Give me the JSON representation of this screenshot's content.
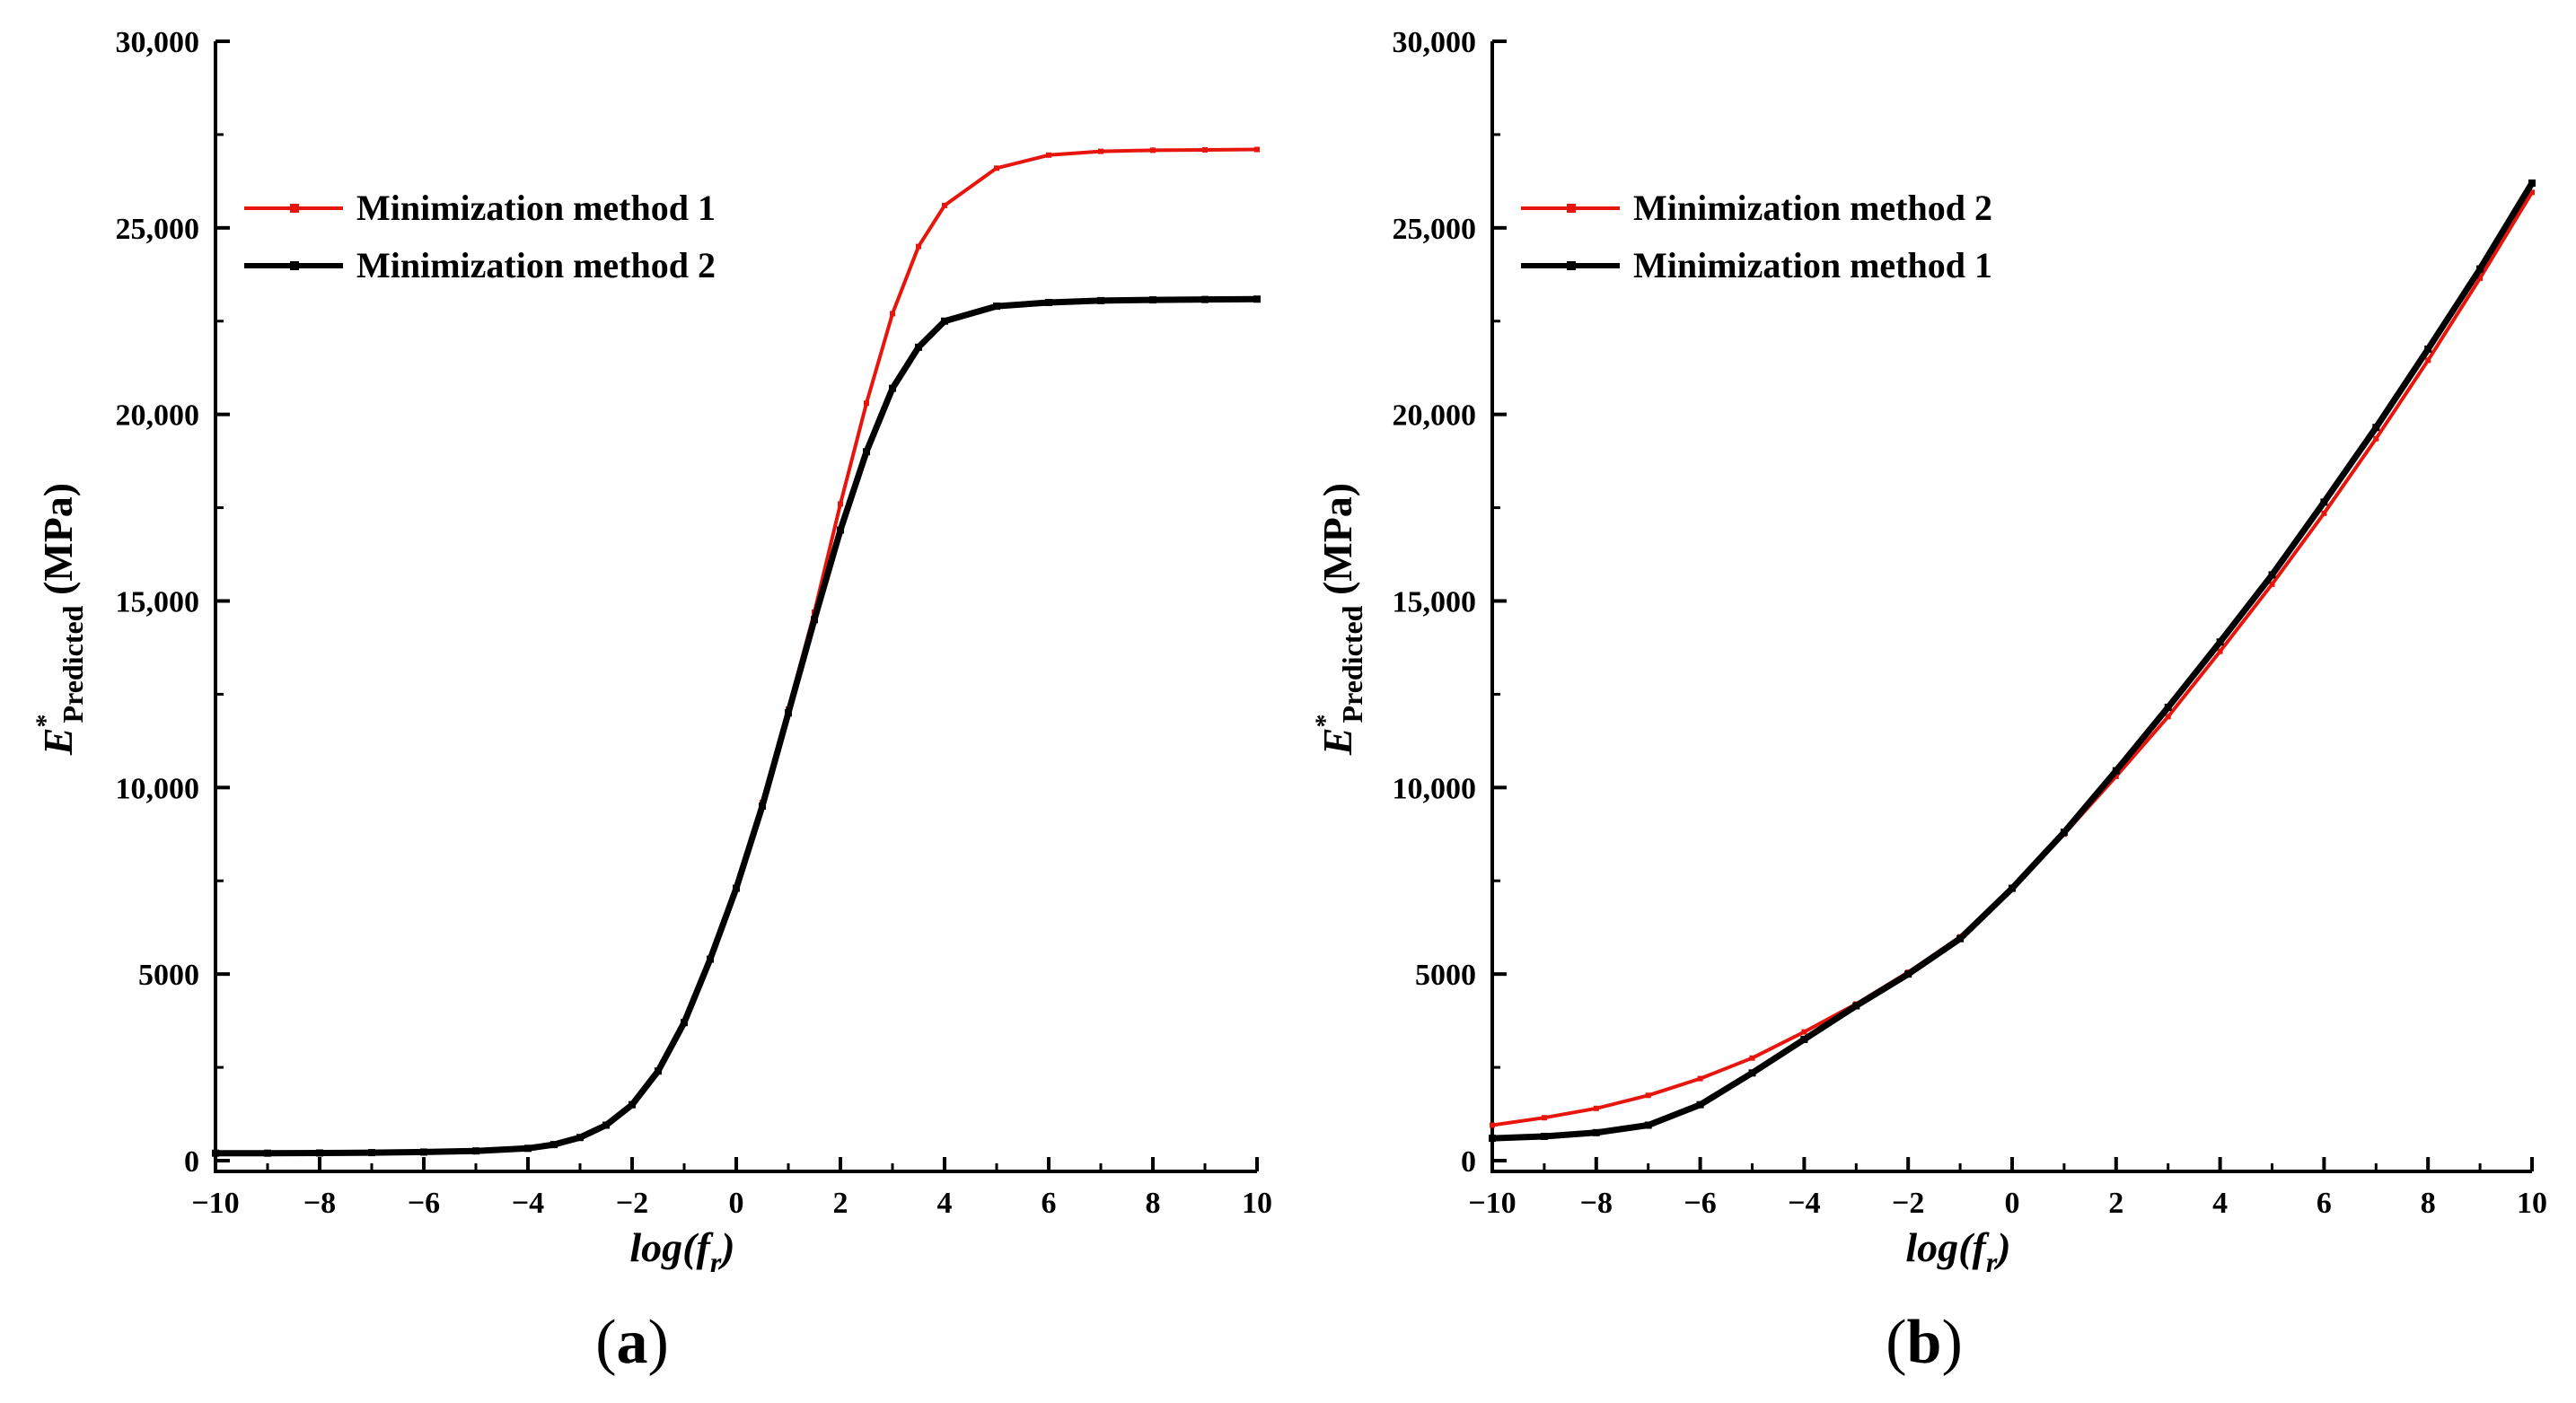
{
  "chart_data": [
    {
      "type": "line",
      "panel_label": "(a)",
      "xlabel": {
        "main": "log(f",
        "sub": "r",
        "close": ")"
      },
      "ylabel": {
        "main": "E",
        "sup": "*",
        "sub": "Predicted",
        "unit": "(MPa)"
      },
      "xlim": [
        -10,
        10
      ],
      "ylim": [
        0,
        30000
      ],
      "xticks": [
        -10,
        -8,
        -6,
        -4,
        -2,
        0,
        2,
        4,
        6,
        8,
        10
      ],
      "xtick_labels": [
        "−10",
        "−8",
        "−6",
        "−4",
        "−2",
        "0",
        "2",
        "4",
        "6",
        "8",
        "10"
      ],
      "yticks": [
        0,
        5000,
        10000,
        15000,
        20000,
        25000,
        30000
      ],
      "ytick_labels": [
        "0",
        "5000",
        "10,000",
        "15,000",
        "20,000",
        "25,000",
        "30,000"
      ],
      "grid": false,
      "legend_position": "top-left",
      "x": [
        -10,
        -9,
        -8,
        -7,
        -6,
        -5,
        -4,
        -3.5,
        -3,
        -2.5,
        -2,
        -1.5,
        -1,
        -0.5,
        0,
        0.5,
        1,
        1.5,
        2,
        2.5,
        3,
        3.5,
        4,
        5,
        6,
        7,
        8,
        9,
        10
      ],
      "series": [
        {
          "name": "Minimization method 1",
          "color": "#e8150c",
          "values": [
            200,
            200,
            205,
            215,
            230,
            260,
            330,
            430,
            620,
            950,
            1500,
            2400,
            3700,
            5400,
            7300,
            9600,
            12100,
            14700,
            17600,
            20300,
            22700,
            24500,
            25600,
            26600,
            26950,
            27050,
            27080,
            27090,
            27100
          ]
        },
        {
          "name": "Minimization method 2",
          "color": "#000000",
          "values": [
            200,
            200,
            205,
            215,
            230,
            260,
            330,
            430,
            620,
            950,
            1500,
            2400,
            3700,
            5400,
            7300,
            9500,
            12000,
            14500,
            16900,
            19000,
            20700,
            21800,
            22500,
            22900,
            23000,
            23050,
            23070,
            23080,
            23090
          ]
        }
      ]
    },
    {
      "type": "line",
      "panel_label": "(b)",
      "xlabel": {
        "main": "log(f",
        "sub": "r",
        "close": ")"
      },
      "ylabel": {
        "main": "E",
        "sup": "*",
        "sub": "Predicted",
        "unit": "(MPa)"
      },
      "xlim": [
        -10,
        10
      ],
      "ylim": [
        0,
        30000
      ],
      "xticks": [
        -10,
        -8,
        -6,
        -4,
        -2,
        0,
        2,
        4,
        6,
        8,
        10
      ],
      "xtick_labels": [
        "−10",
        "−8",
        "−6",
        "−4",
        "−2",
        "0",
        "2",
        "4",
        "6",
        "8",
        "10"
      ],
      "yticks": [
        0,
        5000,
        10000,
        15000,
        20000,
        25000,
        30000
      ],
      "ytick_labels": [
        "0",
        "5000",
        "10,000",
        "15,000",
        "20,000",
        "25,000",
        "30,000"
      ],
      "grid": false,
      "legend_position": "top-left",
      "x": [
        -10,
        -9,
        -8,
        -7,
        -6,
        -5,
        -4,
        -3,
        -2,
        -1,
        0,
        1,
        2,
        3,
        4,
        5,
        6,
        7,
        8,
        9,
        10
      ],
      "series": [
        {
          "name": "Minimization method 2",
          "color": "#e8150c",
          "values": [
            950,
            1150,
            1400,
            1750,
            2200,
            2750,
            3450,
            4200,
            5050,
            6000,
            7300,
            8750,
            10300,
            11900,
            13650,
            15450,
            17350,
            19350,
            21450,
            23650,
            25950
          ]
        },
        {
          "name": "Minimization method 1",
          "color": "#000000",
          "values": [
            600,
            650,
            750,
            950,
            1500,
            2350,
            3250,
            4150,
            5000,
            5950,
            7300,
            8800,
            10450,
            12150,
            13900,
            15700,
            17650,
            19650,
            21750,
            23900,
            26200
          ]
        }
      ]
    }
  ]
}
